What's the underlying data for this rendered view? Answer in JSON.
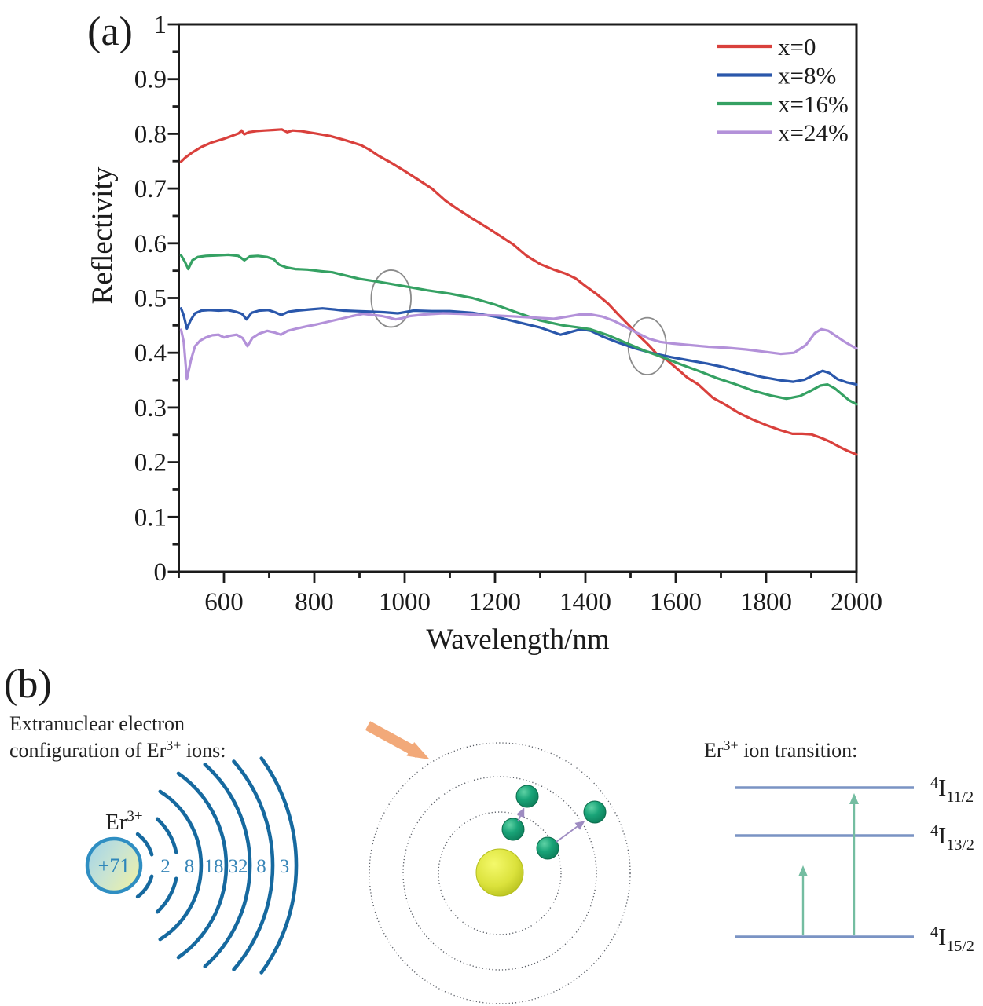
{
  "figure": {
    "panel_a_label": "(a)",
    "panel_b_label": "(b)"
  },
  "chart_data": {
    "type": "line",
    "title": "",
    "xlabel": "Wavelength/nm",
    "ylabel": "Reflectivity",
    "xlim": [
      500,
      2000
    ],
    "ylim": [
      0,
      1
    ],
    "grid": false,
    "legend_position": "top-right",
    "x_ticks": [
      600,
      800,
      1000,
      1200,
      1400,
      1600,
      1800,
      2000
    ],
    "x_minor_ticks": [
      500,
      700,
      900,
      1100,
      1300,
      1500,
      1700,
      1900
    ],
    "y_ticks": [
      0,
      0.1,
      0.2,
      0.3,
      0.4,
      0.5,
      0.6,
      0.7,
      0.8,
      0.9,
      1
    ],
    "y_tick_labels": [
      "0",
      "0.1",
      "0.2",
      "0.3",
      "0.4",
      "0.5",
      "0.6",
      "0.7",
      "0.8",
      "0.9",
      "1"
    ],
    "series": [
      {
        "name": "x=0",
        "color": "#d9403c",
        "points": [
          [
            505,
            0.749
          ],
          [
            515,
            0.757
          ],
          [
            530,
            0.766
          ],
          [
            550,
            0.776
          ],
          [
            572,
            0.784
          ],
          [
            600,
            0.791
          ],
          [
            620,
            0.797
          ],
          [
            633,
            0.801
          ],
          [
            639,
            0.806
          ],
          [
            645,
            0.799
          ],
          [
            655,
            0.803
          ],
          [
            672,
            0.805
          ],
          [
            690,
            0.806
          ],
          [
            710,
            0.807
          ],
          [
            728,
            0.808
          ],
          [
            740,
            0.803
          ],
          [
            752,
            0.806
          ],
          [
            770,
            0.805
          ],
          [
            800,
            0.801
          ],
          [
            835,
            0.796
          ],
          [
            870,
            0.788
          ],
          [
            904,
            0.779
          ],
          [
            922,
            0.771
          ],
          [
            940,
            0.761
          ],
          [
            970,
            0.747
          ],
          [
            1000,
            0.732
          ],
          [
            1030,
            0.716
          ],
          [
            1060,
            0.7
          ],
          [
            1090,
            0.678
          ],
          [
            1120,
            0.661
          ],
          [
            1150,
            0.645
          ],
          [
            1180,
            0.63
          ],
          [
            1210,
            0.614
          ],
          [
            1240,
            0.598
          ],
          [
            1270,
            0.577
          ],
          [
            1300,
            0.562
          ],
          [
            1330,
            0.552
          ],
          [
            1355,
            0.545
          ],
          [
            1378,
            0.536
          ],
          [
            1400,
            0.522
          ],
          [
            1425,
            0.507
          ],
          [
            1450,
            0.49
          ],
          [
            1475,
            0.468
          ],
          [
            1500,
            0.447
          ],
          [
            1520,
            0.43
          ],
          [
            1540,
            0.414
          ],
          [
            1560,
            0.396
          ],
          [
            1580,
            0.387
          ],
          [
            1600,
            0.373
          ],
          [
            1625,
            0.355
          ],
          [
            1650,
            0.342
          ],
          [
            1682,
            0.318
          ],
          [
            1710,
            0.305
          ],
          [
            1740,
            0.29
          ],
          [
            1770,
            0.278
          ],
          [
            1800,
            0.268
          ],
          [
            1830,
            0.259
          ],
          [
            1858,
            0.252
          ],
          [
            1880,
            0.252
          ],
          [
            1900,
            0.251
          ],
          [
            1920,
            0.245
          ],
          [
            1940,
            0.238
          ],
          [
            1960,
            0.229
          ],
          [
            1980,
            0.221
          ],
          [
            2000,
            0.214
          ]
        ]
      },
      {
        "name": "x=8%",
        "color": "#2a57ab",
        "points": [
          [
            505,
            0.481
          ],
          [
            511,
            0.468
          ],
          [
            518,
            0.444
          ],
          [
            526,
            0.459
          ],
          [
            536,
            0.472
          ],
          [
            550,
            0.477
          ],
          [
            568,
            0.478
          ],
          [
            588,
            0.477
          ],
          [
            608,
            0.478
          ],
          [
            626,
            0.475
          ],
          [
            640,
            0.471
          ],
          [
            650,
            0.461
          ],
          [
            661,
            0.473
          ],
          [
            678,
            0.477
          ],
          [
            698,
            0.478
          ],
          [
            713,
            0.474
          ],
          [
            727,
            0.469
          ],
          [
            743,
            0.475
          ],
          [
            762,
            0.477
          ],
          [
            788,
            0.479
          ],
          [
            818,
            0.481
          ],
          [
            845,
            0.479
          ],
          [
            865,
            0.477
          ],
          [
            895,
            0.476
          ],
          [
            925,
            0.475
          ],
          [
            955,
            0.474
          ],
          [
            985,
            0.472
          ],
          [
            1020,
            0.477
          ],
          [
            1060,
            0.476
          ],
          [
            1100,
            0.476
          ],
          [
            1150,
            0.473
          ],
          [
            1200,
            0.466
          ],
          [
            1250,
            0.456
          ],
          [
            1300,
            0.446
          ],
          [
            1345,
            0.433
          ],
          [
            1368,
            0.438
          ],
          [
            1390,
            0.443
          ],
          [
            1412,
            0.44
          ],
          [
            1440,
            0.429
          ],
          [
            1475,
            0.418
          ],
          [
            1510,
            0.408
          ],
          [
            1550,
            0.399
          ],
          [
            1590,
            0.392
          ],
          [
            1630,
            0.386
          ],
          [
            1670,
            0.38
          ],
          [
            1710,
            0.373
          ],
          [
            1750,
            0.364
          ],
          [
            1790,
            0.356
          ],
          [
            1830,
            0.35
          ],
          [
            1860,
            0.347
          ],
          [
            1885,
            0.351
          ],
          [
            1905,
            0.359
          ],
          [
            1925,
            0.367
          ],
          [
            1940,
            0.363
          ],
          [
            1958,
            0.352
          ],
          [
            1978,
            0.346
          ],
          [
            2000,
            0.342
          ]
        ]
      },
      {
        "name": "x=16%",
        "color": "#35a163",
        "points": [
          [
            505,
            0.578
          ],
          [
            513,
            0.567
          ],
          [
            521,
            0.553
          ],
          [
            530,
            0.569
          ],
          [
            542,
            0.575
          ],
          [
            560,
            0.577
          ],
          [
            585,
            0.578
          ],
          [
            610,
            0.579
          ],
          [
            632,
            0.577
          ],
          [
            645,
            0.569
          ],
          [
            657,
            0.576
          ],
          [
            675,
            0.577
          ],
          [
            695,
            0.575
          ],
          [
            710,
            0.571
          ],
          [
            722,
            0.561
          ],
          [
            738,
            0.556
          ],
          [
            758,
            0.553
          ],
          [
            785,
            0.552
          ],
          [
            815,
            0.549
          ],
          [
            840,
            0.547
          ],
          [
            870,
            0.541
          ],
          [
            900,
            0.535
          ],
          [
            940,
            0.53
          ],
          [
            975,
            0.525
          ],
          [
            1010,
            0.52
          ],
          [
            1050,
            0.514
          ],
          [
            1100,
            0.508
          ],
          [
            1150,
            0.5
          ],
          [
            1200,
            0.488
          ],
          [
            1250,
            0.473
          ],
          [
            1300,
            0.459
          ],
          [
            1350,
            0.45
          ],
          [
            1385,
            0.446
          ],
          [
            1410,
            0.443
          ],
          [
            1450,
            0.432
          ],
          [
            1490,
            0.418
          ],
          [
            1530,
            0.404
          ],
          [
            1570,
            0.392
          ],
          [
            1610,
            0.379
          ],
          [
            1650,
            0.367
          ],
          [
            1690,
            0.354
          ],
          [
            1730,
            0.343
          ],
          [
            1770,
            0.331
          ],
          [
            1810,
            0.322
          ],
          [
            1845,
            0.316
          ],
          [
            1875,
            0.321
          ],
          [
            1900,
            0.331
          ],
          [
            1920,
            0.34
          ],
          [
            1936,
            0.342
          ],
          [
            1952,
            0.335
          ],
          [
            1968,
            0.324
          ],
          [
            1984,
            0.313
          ],
          [
            2000,
            0.306
          ]
        ]
      },
      {
        "name": "x=24%",
        "color": "#b391d9",
        "points": [
          [
            505,
            0.442
          ],
          [
            511,
            0.42
          ],
          [
            518,
            0.352
          ],
          [
            527,
            0.387
          ],
          [
            536,
            0.412
          ],
          [
            547,
            0.422
          ],
          [
            560,
            0.428
          ],
          [
            574,
            0.432
          ],
          [
            588,
            0.433
          ],
          [
            600,
            0.428
          ],
          [
            613,
            0.431
          ],
          [
            628,
            0.433
          ],
          [
            641,
            0.427
          ],
          [
            652,
            0.412
          ],
          [
            663,
            0.427
          ],
          [
            678,
            0.435
          ],
          [
            696,
            0.44
          ],
          [
            712,
            0.437
          ],
          [
            726,
            0.433
          ],
          [
            741,
            0.44
          ],
          [
            760,
            0.444
          ],
          [
            782,
            0.448
          ],
          [
            806,
            0.452
          ],
          [
            832,
            0.457
          ],
          [
            858,
            0.462
          ],
          [
            884,
            0.467
          ],
          [
            908,
            0.471
          ],
          [
            930,
            0.469
          ],
          [
            950,
            0.467
          ],
          [
            966,
            0.464
          ],
          [
            980,
            0.461
          ],
          [
            994,
            0.463
          ],
          [
            1012,
            0.467
          ],
          [
            1045,
            0.47
          ],
          [
            1085,
            0.472
          ],
          [
            1125,
            0.471
          ],
          [
            1165,
            0.469
          ],
          [
            1205,
            0.468
          ],
          [
            1248,
            0.466
          ],
          [
            1290,
            0.464
          ],
          [
            1330,
            0.462
          ],
          [
            1360,
            0.466
          ],
          [
            1388,
            0.47
          ],
          [
            1412,
            0.47
          ],
          [
            1438,
            0.466
          ],
          [
            1464,
            0.458
          ],
          [
            1490,
            0.447
          ],
          [
            1515,
            0.436
          ],
          [
            1540,
            0.426
          ],
          [
            1565,
            0.42
          ],
          [
            1592,
            0.417
          ],
          [
            1630,
            0.414
          ],
          [
            1672,
            0.411
          ],
          [
            1714,
            0.409
          ],
          [
            1756,
            0.406
          ],
          [
            1795,
            0.402
          ],
          [
            1832,
            0.398
          ],
          [
            1862,
            0.4
          ],
          [
            1888,
            0.414
          ],
          [
            1908,
            0.436
          ],
          [
            1922,
            0.443
          ],
          [
            1938,
            0.44
          ],
          [
            1954,
            0.431
          ],
          [
            1972,
            0.421
          ],
          [
            1986,
            0.414
          ],
          [
            2000,
            0.408
          ]
        ]
      }
    ],
    "annotations": [
      {
        "shape": "ellipse",
        "x": 970,
        "y": 0.499,
        "rx_nm": 44,
        "ry": 0.052
      },
      {
        "shape": "ellipse",
        "x": 1537,
        "y": 0.412,
        "rx_nm": 42,
        "ry": 0.052
      }
    ]
  },
  "panel_b": {
    "electron_config": {
      "caption_line1": "Extranuclear electron",
      "caption_line2": {
        "pre": "configuration of Er",
        "sup": "3+",
        "post": " ions:"
      },
      "ion": {
        "base": "Er",
        "sup": "3+"
      },
      "nucleus_charge": "+71",
      "shells": [
        "2",
        "8",
        "18",
        "32",
        "8",
        "3"
      ]
    },
    "ion_transition": {
      "title": {
        "pre": "Er",
        "sup": "3+",
        "post": " ion transition:"
      },
      "levels": [
        {
          "sup": "4",
          "base": "I",
          "sub": "11/2"
        },
        {
          "sup": "4",
          "base": "I",
          "sub": "13/2"
        },
        {
          "sup": "4",
          "base": "I",
          "sub": "15/2"
        }
      ],
      "transitions": [
        {
          "from": "4I15/2",
          "to": "4I13/2"
        },
        {
          "from": "4I15/2",
          "to": "4I11/2"
        }
      ]
    }
  }
}
